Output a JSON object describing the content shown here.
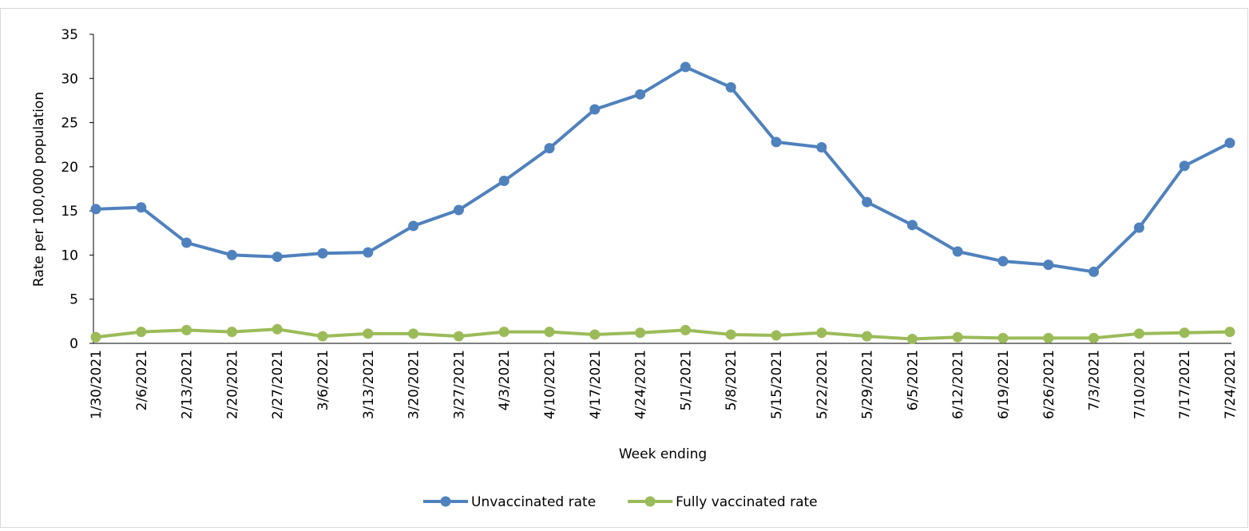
{
  "chart_data": {
    "type": "line",
    "x_label": "Week ending",
    "y_label": "Rate per 100,000 population",
    "categories": [
      "1/30/2021",
      "2/6/2021",
      "2/13/2021",
      "2/20/2021",
      "2/27/2021",
      "3/6/2021",
      "3/13/2021",
      "3/20/2021",
      "3/27/2021",
      "4/3/2021",
      "4/10/2021",
      "4/17/2021",
      "4/24/2021",
      "5/1/2021",
      "5/8/2021",
      "5/15/2021",
      "5/22/2021",
      "5/29/2021",
      "6/5/2021",
      "6/12/2021",
      "6/19/2021",
      "6/26/2021",
      "7/3/2021",
      "7/10/2021",
      "7/17/2021",
      "7/24/2021"
    ],
    "series": [
      {
        "name": "Unvaccinated rate",
        "color": "#4f81bd",
        "values": [
          15.2,
          15.4,
          11.4,
          10.0,
          9.8,
          10.2,
          10.3,
          13.3,
          15.1,
          18.4,
          22.1,
          26.5,
          28.2,
          31.3,
          29.0,
          22.8,
          22.2,
          16.0,
          13.4,
          10.4,
          9.3,
          8.9,
          8.1,
          13.1,
          20.1,
          22.7
        ]
      },
      {
        "name": "Fully vaccinated rate",
        "color": "#9bbb59",
        "values": [
          0.7,
          1.3,
          1.5,
          1.3,
          1.6,
          0.8,
          1.1,
          1.1,
          0.8,
          1.3,
          1.3,
          1.0,
          1.2,
          1.5,
          1.0,
          0.9,
          1.2,
          0.8,
          0.5,
          0.7,
          0.6,
          0.6,
          0.6,
          1.1,
          1.2,
          1.3
        ]
      }
    ],
    "ylim": [
      0,
      35
    ],
    "yticks": [
      0,
      5,
      10,
      15,
      20,
      25,
      30,
      35
    ],
    "grid": false,
    "legend": "bottom"
  }
}
